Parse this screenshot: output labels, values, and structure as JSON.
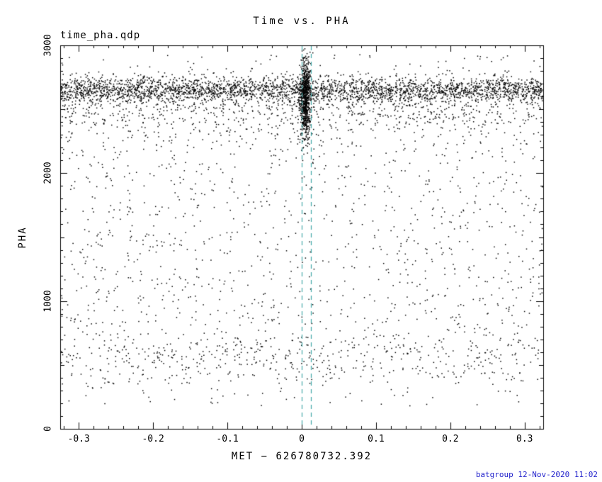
{
  "chart_data": {
    "type": "scatter",
    "title": "Time vs. PHA",
    "annotation": "time_pha.qdp",
    "xlabel": "MET − 626780732.392",
    "ylabel": "PHA",
    "xlim": [
      -0.325,
      0.325
    ],
    "ylim": [
      0,
      3000
    ],
    "grid": false,
    "legend": null,
    "point_color": "#000000",
    "frame_color": "#000000",
    "xticks": [
      {
        "v": -0.3,
        "label": "-0.3"
      },
      {
        "v": -0.2,
        "label": "-0.2"
      },
      {
        "v": -0.1,
        "label": "-0.1"
      },
      {
        "v": 0,
        "label": "0"
      },
      {
        "v": 0.1,
        "label": "0.1"
      },
      {
        "v": 0.2,
        "label": "0.2"
      },
      {
        "v": 0.3,
        "label": "0.3"
      }
    ],
    "yticks": [
      {
        "v": 0,
        "label": "0"
      },
      {
        "v": 1000,
        "label": "1000"
      },
      {
        "v": 2000,
        "label": "2000"
      },
      {
        "v": 3000,
        "label": "3000"
      }
    ],
    "x_minor_step": 0.02,
    "y_minor_step": 100,
    "vlines": {
      "x": [
        0.0,
        0.012
      ],
      "color": "#44a8a8",
      "dash": [
        6,
        5
      ]
    },
    "seed": 20201112,
    "clusters": [
      {
        "name": "main-band",
        "count": 2800,
        "x": {
          "dist": "uniform",
          "min": -0.325,
          "max": 0.325
        },
        "y": {
          "dist": "normal",
          "mean": 2650,
          "sd": 50
        }
      },
      {
        "name": "band-tail",
        "count": 950,
        "x": {
          "dist": "uniform",
          "min": -0.325,
          "max": 0.325
        },
        "y": {
          "dist": "normal",
          "mean": 2500,
          "sd": 120
        }
      },
      {
        "name": "central-burst",
        "count": 800,
        "x": {
          "dist": "normal",
          "mean": 0.005,
          "sd": 0.0035
        },
        "y": {
          "dist": "normal",
          "mean": 2580,
          "sd": 150
        }
      },
      {
        "name": "sparse-mid",
        "count": 1300,
        "x": {
          "dist": "uniform",
          "min": -0.325,
          "max": 0.325
        },
        "y": {
          "dist": "uniform",
          "min": 350,
          "max": 2350
        }
      },
      {
        "name": "low-band",
        "count": 300,
        "x": {
          "dist": "uniform",
          "min": -0.325,
          "max": 0.325
        },
        "y": {
          "dist": "normal",
          "mean": 580,
          "sd": 90
        }
      },
      {
        "name": "deep-low",
        "count": 60,
        "x": {
          "dist": "uniform",
          "min": -0.325,
          "max": 0.325
        },
        "y": {
          "dist": "uniform",
          "min": 180,
          "max": 400
        }
      },
      {
        "name": "high-outliers",
        "count": 70,
        "x": {
          "dist": "uniform",
          "min": -0.325,
          "max": 0.325
        },
        "y": {
          "dist": "uniform",
          "min": 2750,
          "max": 2930
        }
      }
    ],
    "footer": {
      "text": "batgroup 12-Nov-2020 11:02",
      "color": "#2222cc"
    }
  }
}
